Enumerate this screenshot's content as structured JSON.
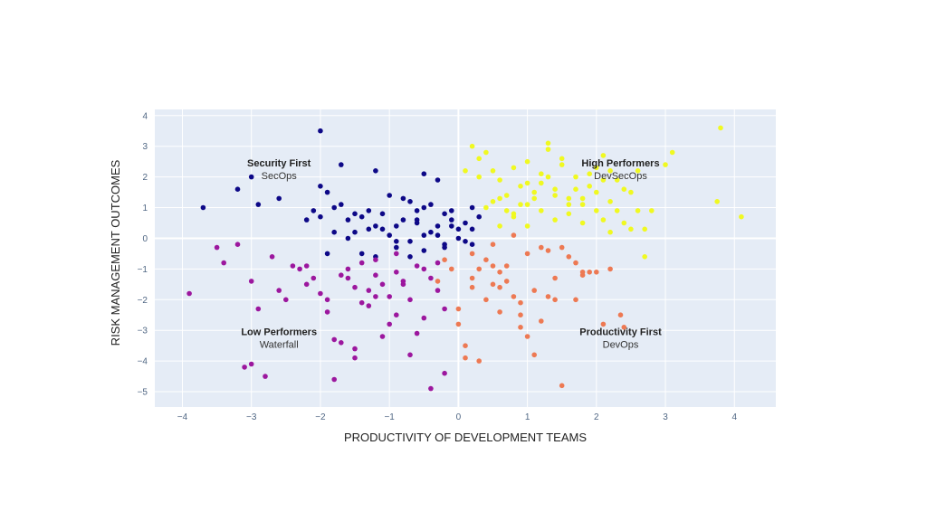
{
  "chart_data": {
    "type": "scatter",
    "xlabel": "PRODUCTIVITY OF DEVELOPMENT TEAMS",
    "ylabel": "RISK MANAGEMENT OUTCOMES",
    "xlim": [
      -4.4,
      4.6
    ],
    "ylim": [
      -5.5,
      4.2
    ],
    "xticks": [
      -4,
      -3,
      -2,
      -1,
      0,
      1,
      2,
      3,
      4
    ],
    "yticks": [
      -5,
      -4,
      -3,
      -2,
      -1,
      0,
      1,
      2,
      3,
      4
    ],
    "xtick_labels": [
      "−4",
      "−3",
      "−2",
      "−1",
      "0",
      "1",
      "2",
      "3",
      "4"
    ],
    "ytick_labels": [
      "−5",
      "−4",
      "−3",
      "−2",
      "−1",
      "0",
      "1",
      "2",
      "3",
      "4"
    ],
    "grid": true,
    "colors": {
      "plot_bg": "#e5ecf6",
      "grid": "#ffffff",
      "security_first": "#0d0887",
      "low_performers": "#9c179e",
      "productivity_first": "#ed7953",
      "high_performers": "#f0f921"
    },
    "annotations": [
      {
        "title": "Security First",
        "subtitle": "SecOps",
        "x": -2.6,
        "y": 2.05
      },
      {
        "title": "High Performers",
        "subtitle": "DevSecOps",
        "x": 2.35,
        "y": 2.05
      },
      {
        "title": "Low Performers",
        "subtitle": "Waterfall",
        "x": -2.6,
        "y": -3.45
      },
      {
        "title": "Productivity First",
        "subtitle": "DevOps",
        "x": 2.35,
        "y": -3.45
      }
    ],
    "series": [
      {
        "name": "Security First",
        "color": "#0d0887",
        "x": [
          -2.0,
          -3.0,
          -3.2,
          -3.7,
          -2.6,
          -2.9,
          -1.7,
          -1.2,
          -0.5,
          -0.3,
          -1.8,
          -1.5,
          -1.6,
          -2.0,
          -1.9,
          -1.0,
          -0.7,
          -0.5,
          -1.3,
          -1.4,
          -2.2,
          -2.1,
          -0.2,
          -0.1,
          0.1,
          0.2,
          -0.8,
          -0.9,
          -1.1,
          -0.4,
          -0.6,
          -1.2,
          -1.5,
          -1.0,
          -0.3,
          0.0,
          0.1,
          -0.2,
          -0.5,
          -0.7,
          -1.8,
          -1.6,
          -1.3,
          -0.9,
          -0.1,
          0.3,
          0.2,
          -0.4,
          -0.8,
          -1.7,
          -2.0,
          -1.1,
          -0.6,
          -0.3,
          0.0,
          -0.2,
          -1.4,
          -1.9,
          -0.5,
          -0.9,
          -1.2,
          -0.7,
          0.2,
          -0.1,
          -0.6
        ],
        "y": [
          3.5,
          2.0,
          1.6,
          1.0,
          1.3,
          1.1,
          2.4,
          2.2,
          2.1,
          1.9,
          1.0,
          0.8,
          0.6,
          0.7,
          1.5,
          1.4,
          1.2,
          1.0,
          0.9,
          0.7,
          0.6,
          0.9,
          0.8,
          0.6,
          0.5,
          0.3,
          0.6,
          0.4,
          0.3,
          0.2,
          0.5,
          0.4,
          0.2,
          0.1,
          0.1,
          0.0,
          -0.1,
          -0.2,
          0.1,
          -0.1,
          0.2,
          0.0,
          0.3,
          -0.1,
          0.9,
          0.7,
          1.0,
          1.1,
          1.3,
          1.1,
          1.7,
          0.8,
          0.9,
          0.4,
          0.3,
          -0.3,
          -0.5,
          -0.5,
          -0.4,
          -0.3,
          -0.6,
          -0.6,
          -0.2,
          0.4,
          0.6
        ]
      },
      {
        "name": "Low Performers",
        "color": "#9c179e",
        "x": [
          -3.9,
          -3.5,
          -3.4,
          -3.2,
          -3.0,
          -3.1,
          -2.9,
          -2.8,
          -2.7,
          -2.5,
          -2.4,
          -2.3,
          -2.2,
          -2.1,
          -2.0,
          -1.9,
          -1.8,
          -1.7,
          -1.6,
          -1.5,
          -1.4,
          -1.3,
          -1.2,
          -1.1,
          -1.0,
          -0.9,
          -0.8,
          -0.7,
          -0.6,
          -0.5,
          -0.4,
          -0.3,
          -0.2,
          -1.8,
          -1.5,
          -1.2,
          -0.9,
          -0.6,
          -2.2,
          -1.9,
          -1.6,
          -1.3,
          -1.0,
          -0.7,
          -0.4,
          -0.2,
          -1.1,
          -0.8,
          -0.5,
          -1.4,
          -2.6,
          -3.0,
          -1.7,
          -0.9,
          -0.3,
          -1.2,
          -1.5
        ],
        "y": [
          -1.8,
          -0.3,
          -0.8,
          -0.2,
          -4.1,
          -4.2,
          -2.3,
          -4.5,
          -0.6,
          -2.0,
          -0.9,
          -1.0,
          -1.5,
          -1.3,
          -1.8,
          -2.4,
          -4.6,
          -1.2,
          -1.0,
          -1.6,
          -0.8,
          -2.2,
          -0.7,
          -1.5,
          -2.8,
          -1.1,
          -1.4,
          -2.0,
          -0.9,
          -2.6,
          -1.3,
          -1.7,
          -2.3,
          -3.3,
          -3.6,
          -1.9,
          -2.5,
          -3.1,
          -0.9,
          -2.0,
          -1.3,
          -1.7,
          -1.9,
          -3.8,
          -4.9,
          -4.4,
          -3.2,
          -1.5,
          -1.0,
          -2.1,
          -1.7,
          -1.4,
          -3.4,
          -0.5,
          -0.8,
          -1.2,
          -3.9
        ]
      },
      {
        "name": "Productivity First",
        "color": "#ed7953",
        "x": [
          0.0,
          0.2,
          0.3,
          0.4,
          0.5,
          0.6,
          0.7,
          0.8,
          0.9,
          1.0,
          1.1,
          1.2,
          1.3,
          1.4,
          1.5,
          1.6,
          1.7,
          1.8,
          1.9,
          2.0,
          2.1,
          2.2,
          2.35,
          2.4,
          0.1,
          0.3,
          0.5,
          0.7,
          0.9,
          1.1,
          1.3,
          1.5,
          1.7,
          0.2,
          0.4,
          0.6,
          0.8,
          1.0,
          1.2,
          -0.1,
          0.0,
          -0.2,
          0.5,
          0.6,
          0.9,
          1.8,
          1.4,
          0.1,
          0.2,
          -0.3
        ],
        "y": [
          -2.8,
          -1.6,
          -1.0,
          -0.7,
          -1.5,
          -2.4,
          -0.9,
          -1.9,
          -2.1,
          -3.2,
          -3.8,
          -2.7,
          -0.4,
          -1.3,
          -4.8,
          -0.6,
          -2.0,
          -1.2,
          -1.1,
          -1.1,
          -2.8,
          -1.0,
          -2.5,
          -2.9,
          -3.5,
          -4.0,
          -0.2,
          -1.4,
          -2.5,
          -1.7,
          -1.9,
          -0.3,
          -0.8,
          -1.3,
          -2.0,
          -1.1,
          0.1,
          -0.5,
          -0.3,
          -1.0,
          -2.3,
          -0.7,
          -0.9,
          -1.6,
          -2.9,
          -1.1,
          -2.0,
          -3.9,
          -0.5,
          -1.4
        ]
      },
      {
        "name": "High Performers",
        "color": "#f0f921",
        "x": [
          0.2,
          0.3,
          0.5,
          0.6,
          0.7,
          0.8,
          0.9,
          1.0,
          1.1,
          1.2,
          1.3,
          1.4,
          1.5,
          1.6,
          1.7,
          1.8,
          1.9,
          2.0,
          2.1,
          2.2,
          2.3,
          2.4,
          2.5,
          2.6,
          2.7,
          2.8,
          3.0,
          3.1,
          3.8,
          3.75,
          4.1,
          0.4,
          0.6,
          0.8,
          1.0,
          1.2,
          1.4,
          1.6,
          1.8,
          2.0,
          2.2,
          0.3,
          0.5,
          0.7,
          0.9,
          1.1,
          1.3,
          1.5,
          1.7,
          1.9,
          2.1,
          2.3,
          2.5,
          2.7,
          0.1,
          0.4,
          0.6,
          0.8,
          1.0,
          1.2,
          1.4,
          1.6,
          1.8,
          2.0,
          2.2,
          2.4,
          2.6,
          1.3,
          1.0,
          2.1
        ],
        "y": [
          3.0,
          2.6,
          2.2,
          1.9,
          1.4,
          2.3,
          1.1,
          1.8,
          1.5,
          2.1,
          2.9,
          1.6,
          2.4,
          1.3,
          2.0,
          1.1,
          1.7,
          2.3,
          2.7,
          1.2,
          1.9,
          0.5,
          1.5,
          2.2,
          0.3,
          0.9,
          2.4,
          2.8,
          3.6,
          1.2,
          0.7,
          1.0,
          1.3,
          0.8,
          0.4,
          0.9,
          0.6,
          1.1,
          0.5,
          1.5,
          0.2,
          2.0,
          1.2,
          0.9,
          1.7,
          1.3,
          2.0,
          2.6,
          1.6,
          2.1,
          0.6,
          0.9,
          0.3,
          -0.6,
          2.2,
          2.8,
          0.4,
          0.7,
          1.1,
          1.8,
          1.4,
          0.8,
          1.3,
          0.9,
          2.2,
          1.6,
          0.9,
          3.1,
          2.5,
          1.9
        ]
      }
    ]
  }
}
